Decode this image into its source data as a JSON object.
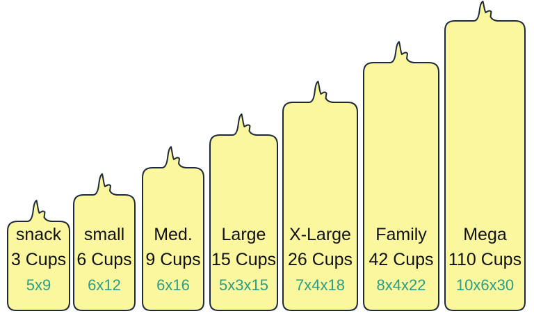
{
  "colors": {
    "bag_fill": "#fbf79f",
    "bag_outline": "#1e2a3a",
    "label_text": "#111111",
    "dimension_text": "#2a9d84"
  },
  "bags": [
    {
      "name": "snack",
      "cups": "3 Cups",
      "dimensions": "5x9"
    },
    {
      "name": "small",
      "cups": "6 Cups",
      "dimensions": "6x12"
    },
    {
      "name": "Med.",
      "cups": "9 Cups",
      "dimensions": "6x16"
    },
    {
      "name": "Large",
      "cups": "15 Cups",
      "dimensions": "5x3x15"
    },
    {
      "name": "X-Large",
      "cups": "26 Cups",
      "dimensions": "7x4x18"
    },
    {
      "name": "Family",
      "cups": "42 Cups",
      "dimensions": "8x4x22"
    },
    {
      "name": "Mega",
      "cups": "110 Cups",
      "dimensions": "10x6x30"
    }
  ]
}
